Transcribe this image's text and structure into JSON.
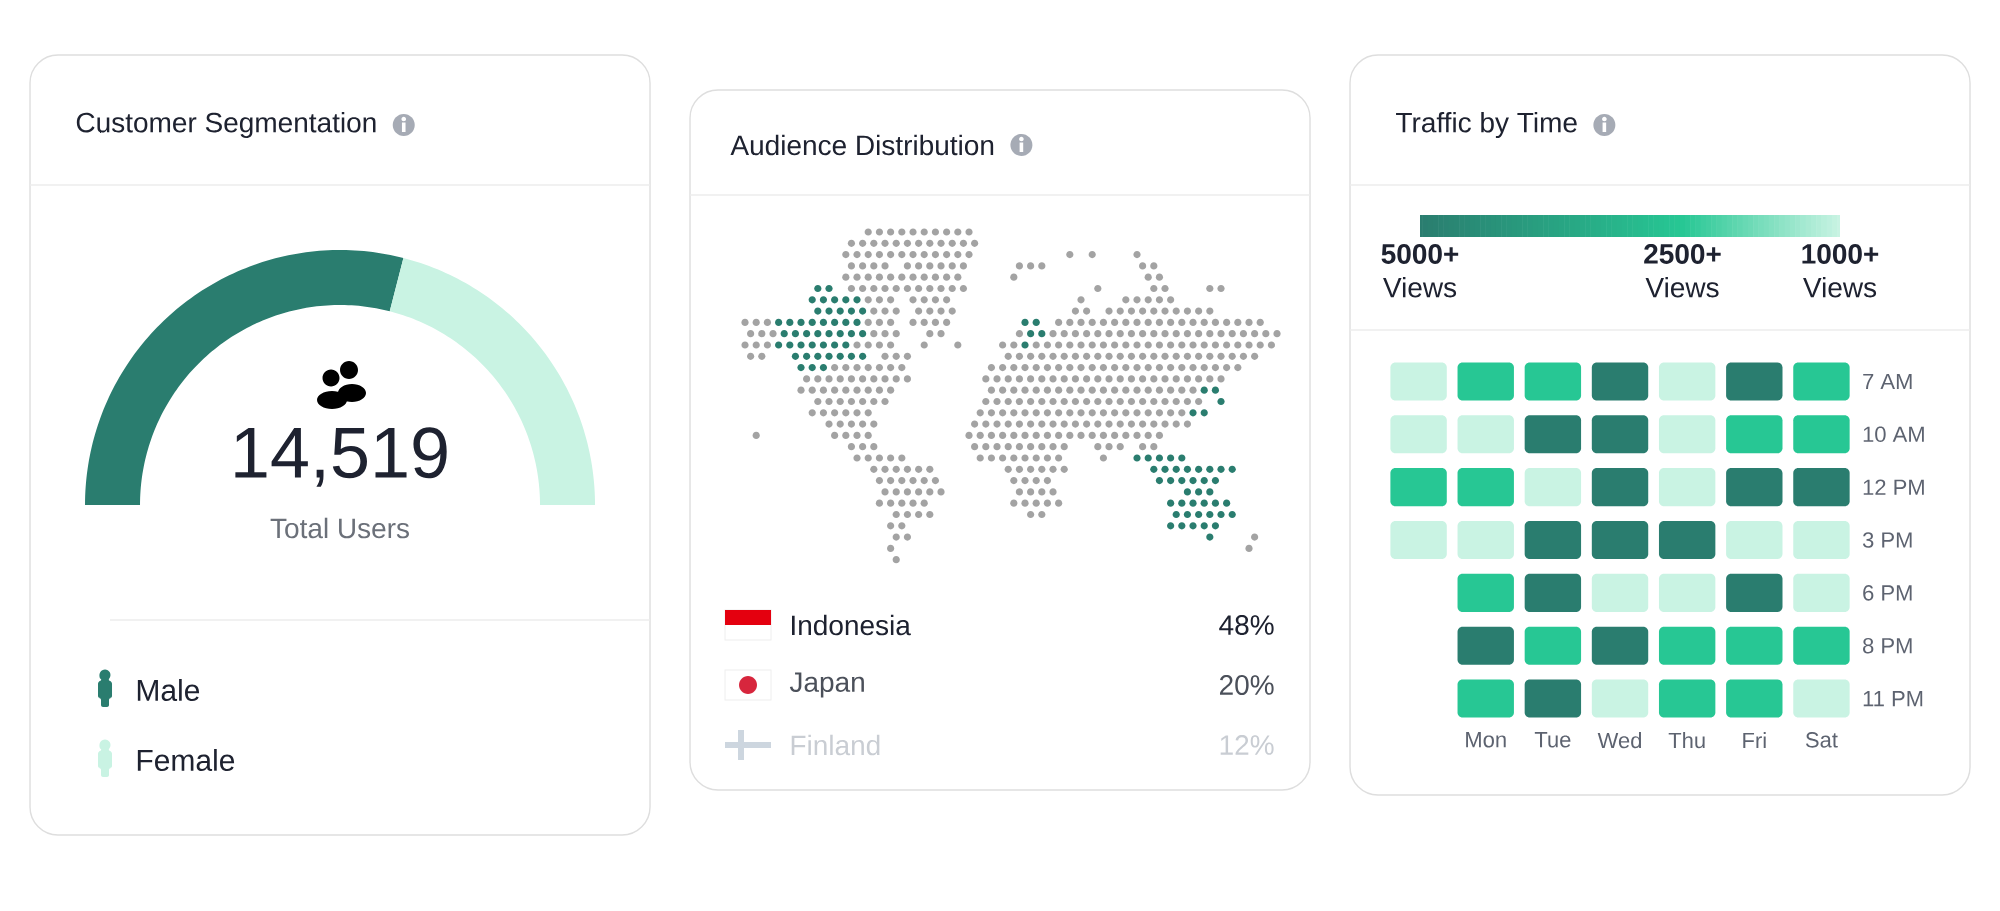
{
  "chart_data": [
    {
      "type": "donut",
      "title": "Customer Segmentation",
      "categories": [
        "Male",
        "Female"
      ],
      "values": [
        58,
        42
      ],
      "colors": [
        "#2a7d6f",
        "#c9f3e3"
      ],
      "annotations": [
        "14,519",
        "Total Users"
      ],
      "legend": "bottom"
    },
    {
      "type": "other",
      "title": "Audience Distribution",
      "categories": [
        "Indonesia",
        "Japan",
        "Finland"
      ],
      "value_labels": [
        "48%",
        "20%",
        "12%"
      ]
    },
    {
      "type": "heatmap",
      "title": "Traffic by Time",
      "categories": [
        null,
        "Mon",
        "Tue",
        "Wed",
        "Thu",
        "Fri",
        "Sat"
      ],
      "y_categories": [
        "7 AM",
        "10 AM",
        "12 PM",
        "3 PM",
        "6 PM",
        "8 PM",
        "11 PM"
      ],
      "cells": [
        [
          1000,
          2500,
          2500,
          5000,
          1000,
          5000,
          2500
        ],
        [
          1000,
          1000,
          5000,
          5000,
          1000,
          2500,
          2500
        ],
        [
          2500,
          2500,
          1000,
          5000,
          1000,
          5000,
          5000
        ],
        [
          1000,
          1000,
          5000,
          5000,
          5000,
          1000,
          1000
        ],
        [
          null,
          2500,
          5000,
          1000,
          1000,
          5000,
          1000
        ],
        [
          null,
          5000,
          2500,
          5000,
          2500,
          2500,
          2500
        ],
        [
          null,
          2500,
          5000,
          1000,
          2500,
          2500,
          1000
        ]
      ],
      "clim": [
        5000,
        1000
      ],
      "cticks": [
        {
          "value": 5000,
          "label": "**5000+** Views"
        },
        {
          "value": 2500,
          "label": "**2500+** Views"
        },
        {
          "value": 1000,
          "label": "**1000+** Views"
        }
      ],
      "colors": [
        "#2a7d6f",
        "#27c794",
        "#c9f3e3"
      ]
    }
  ]
}
